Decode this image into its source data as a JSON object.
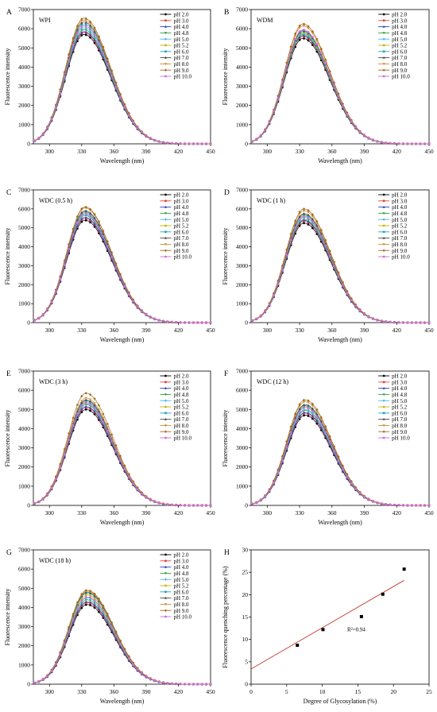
{
  "chart_data": [
    {
      "type": "line",
      "letter": "A",
      "title": "WPI",
      "xlabel": "Wavelength (nm)",
      "ylabel": "Fluorescence intensity",
      "xlim": [
        285,
        450
      ],
      "ylim": [
        0,
        7000
      ],
      "xticks": [
        "300",
        "330",
        "360",
        "390",
        "420",
        "450"
      ],
      "yticks": [
        "0",
        "1000",
        "2000",
        "3000",
        "4000",
        "5000",
        "6000",
        "7000"
      ],
      "legend": "top-right",
      "peak_x": 332,
      "series": [
        {
          "name": "pH 2.0",
          "peak": 5700,
          "color": "#000000"
        },
        {
          "name": "pH 3.0",
          "peak": 5800,
          "color": "#e8403a"
        },
        {
          "name": "pH 4.0",
          "peak": 5850,
          "color": "#2c3ec9"
        },
        {
          "name": "pH 4.8",
          "peak": 5950,
          "color": "#2f9e3b"
        },
        {
          "name": "pH 5.0",
          "peak": 6050,
          "color": "#49b4e6"
        },
        {
          "name": "pH 5.2",
          "peak": 6150,
          "color": "#c8b400"
        },
        {
          "name": "pH 6.0",
          "peak": 6250,
          "color": "#20a4b8"
        },
        {
          "name": "pH 7.0",
          "peak": 6350,
          "color": "#4a4a4a"
        },
        {
          "name": "pH 8.0",
          "peak": 6450,
          "color": "#d08a2c"
        },
        {
          "name": "pH 9.0",
          "peak": 6550,
          "color": "#a06a1a"
        },
        {
          "name": "pH 10.0",
          "peak": 6150,
          "color": "#d36ad6"
        }
      ]
    },
    {
      "type": "line",
      "letter": "B",
      "title": "WDM",
      "xlabel": "Wavelength (nm)",
      "ylabel": "Fluorescence intensity",
      "xlim": [
        285,
        450
      ],
      "ylim": [
        0,
        7000
      ],
      "xticks": [
        "300",
        "330",
        "360",
        "390",
        "420",
        "450"
      ],
      "yticks": [
        "0",
        "1000",
        "2000",
        "3000",
        "4000",
        "5000",
        "6000",
        "7000"
      ],
      "legend": "top-right",
      "peak_x": 333,
      "series": [
        {
          "name": "pH 2.0",
          "peak": 5500,
          "color": "#000000"
        },
        {
          "name": "pH 3.0",
          "peak": 5600,
          "color": "#e8403a"
        },
        {
          "name": "pH 4.0",
          "peak": 5650,
          "color": "#2c3ec9"
        },
        {
          "name": "pH 4.8",
          "peak": 5700,
          "color": "#2f9e3b"
        },
        {
          "name": "pH 5.0",
          "peak": 5750,
          "color": "#49b4e6"
        },
        {
          "name": "pH 5.2",
          "peak": 5800,
          "color": "#c8b400"
        },
        {
          "name": "pH 6.0",
          "peak": 5850,
          "color": "#20a4b8"
        },
        {
          "name": "pH 7.0",
          "peak": 5900,
          "color": "#4a4a4a"
        },
        {
          "name": "pH 8.0",
          "peak": 6150,
          "color": "#d08a2c"
        },
        {
          "name": "pH 9.0",
          "peak": 6250,
          "color": "#a06a1a"
        },
        {
          "name": "pH 10.0",
          "peak": 5950,
          "color": "#d36ad6"
        }
      ]
    },
    {
      "type": "line",
      "letter": "C",
      "title": "WDC (0.5 h)",
      "xlabel": "Wavelength (nm)",
      "ylabel": "Fluorescence intensity",
      "xlim": [
        285,
        450
      ],
      "ylim": [
        0,
        7000
      ],
      "xticks": [
        "300",
        "330",
        "360",
        "390",
        "420",
        "450"
      ],
      "yticks": [
        "0",
        "1000",
        "2000",
        "3000",
        "4000",
        "5000",
        "6000",
        "7000"
      ],
      "legend": "top-right",
      "peak_x": 333,
      "series": [
        {
          "name": "pH 2.0",
          "peak": 5400,
          "color": "#000000"
        },
        {
          "name": "pH 3.0",
          "peak": 5500,
          "color": "#e8403a"
        },
        {
          "name": "pH 4.0",
          "peak": 5550,
          "color": "#2c3ec9"
        },
        {
          "name": "pH 4.8",
          "peak": 5650,
          "color": "#2f9e3b"
        },
        {
          "name": "pH 5.0",
          "peak": 5700,
          "color": "#49b4e6"
        },
        {
          "name": "pH 5.2",
          "peak": 5800,
          "color": "#c8b400"
        },
        {
          "name": "pH 6.0",
          "peak": 5850,
          "color": "#20a4b8"
        },
        {
          "name": "pH 7.0",
          "peak": 5900,
          "color": "#4a4a4a"
        },
        {
          "name": "pH 8.0",
          "peak": 6050,
          "color": "#d08a2c"
        },
        {
          "name": "pH 9.0",
          "peak": 6100,
          "color": "#a06a1a"
        },
        {
          "name": "pH 10.0",
          "peak": 5750,
          "color": "#d36ad6"
        }
      ]
    },
    {
      "type": "line",
      "letter": "D",
      "title": "WDC (1 h)",
      "xlabel": "Wavelength (nm)",
      "ylabel": "Fluorescence intensity",
      "xlim": [
        285,
        450
      ],
      "ylim": [
        0,
        7000
      ],
      "xticks": [
        "300",
        "330",
        "360",
        "390",
        "420",
        "450"
      ],
      "yticks": [
        "0",
        "1000",
        "2000",
        "3000",
        "4000",
        "5000",
        "6000",
        "7000"
      ],
      "legend": "top-right",
      "peak_x": 334,
      "series": [
        {
          "name": "pH 2.0",
          "peak": 5250,
          "color": "#000000"
        },
        {
          "name": "pH 3.0",
          "peak": 5350,
          "color": "#e8403a"
        },
        {
          "name": "pH 4.0",
          "peak": 5400,
          "color": "#2c3ec9"
        },
        {
          "name": "pH 4.8",
          "peak": 5450,
          "color": "#2f9e3b"
        },
        {
          "name": "pH 5.0",
          "peak": 5550,
          "color": "#49b4e6"
        },
        {
          "name": "pH 5.2",
          "peak": 5650,
          "color": "#c8b400"
        },
        {
          "name": "pH 6.0",
          "peak": 5700,
          "color": "#20a4b8"
        },
        {
          "name": "pH 7.0",
          "peak": 5750,
          "color": "#4a4a4a"
        },
        {
          "name": "pH 8.0",
          "peak": 5900,
          "color": "#d08a2c"
        },
        {
          "name": "pH 9.0",
          "peak": 6000,
          "color": "#a06a1a"
        },
        {
          "name": "pH 10.0",
          "peak": 5600,
          "color": "#d36ad6"
        }
      ]
    },
    {
      "type": "line",
      "letter": "E",
      "title": "WDC (3 h)",
      "xlabel": "Wavelength (nm)",
      "ylabel": "Fluorescence intensity",
      "xlim": [
        285,
        450
      ],
      "ylim": [
        0,
        7000
      ],
      "xticks": [
        "300",
        "330",
        "360",
        "390",
        "420",
        "450"
      ],
      "yticks": [
        "0",
        "1000",
        "2000",
        "3000",
        "4000",
        "5000",
        "6000",
        "7000"
      ],
      "legend": "top-right",
      "peak_x": 334,
      "series": [
        {
          "name": "pH 2.0",
          "peak": 5000,
          "color": "#000000"
        },
        {
          "name": "pH 3.0",
          "peak": 5100,
          "color": "#e8403a"
        },
        {
          "name": "pH 4.0",
          "peak": 5150,
          "color": "#2c3ec9"
        },
        {
          "name": "pH 4.8",
          "peak": 5250,
          "color": "#2f9e3b"
        },
        {
          "name": "pH 5.0",
          "peak": 5300,
          "color": "#49b4e6"
        },
        {
          "name": "pH 5.2",
          "peak": 5400,
          "color": "#c8b400"
        },
        {
          "name": "pH 6.0",
          "peak": 5450,
          "color": "#20a4b8"
        },
        {
          "name": "pH 7.0",
          "peak": 5500,
          "color": "#4a4a4a"
        },
        {
          "name": "pH 8.0",
          "peak": 5600,
          "color": "#d08a2c"
        },
        {
          "name": "pH 9.0",
          "peak": 5850,
          "color": "#a06a1a"
        },
        {
          "name": "pH 10.0",
          "peak": 5350,
          "color": "#d36ad6"
        }
      ]
    },
    {
      "type": "line",
      "letter": "F",
      "title": "WDC (12 h)",
      "xlabel": "Wavelength (nm)",
      "ylabel": "Fluorescence intensity",
      "xlim": [
        285,
        450
      ],
      "ylim": [
        0,
        7000
      ],
      "xticks": [
        "300",
        "330",
        "360",
        "390",
        "420",
        "450"
      ],
      "yticks": [
        "0",
        "1000",
        "2000",
        "3000",
        "4000",
        "5000",
        "6000",
        "7000"
      ],
      "legend": "top-right",
      "peak_x": 335,
      "series": [
        {
          "name": "pH 2.0",
          "peak": 4700,
          "color": "#000000"
        },
        {
          "name": "pH 3.0",
          "peak": 4800,
          "color": "#e8403a"
        },
        {
          "name": "pH 4.0",
          "peak": 4850,
          "color": "#2c3ec9"
        },
        {
          "name": "pH 4.8",
          "peak": 4950,
          "color": "#2f9e3b"
        },
        {
          "name": "pH 5.0",
          "peak": 5000,
          "color": "#49b4e6"
        },
        {
          "name": "pH 5.2",
          "peak": 5150,
          "color": "#c8b400"
        },
        {
          "name": "pH 6.0",
          "peak": 5200,
          "color": "#20a4b8"
        },
        {
          "name": "pH 7.0",
          "peak": 5250,
          "color": "#4a4a4a"
        },
        {
          "name": "pH 8.0",
          "peak": 5400,
          "color": "#d08a2c"
        },
        {
          "name": "pH 9.0",
          "peak": 5500,
          "color": "#a06a1a"
        },
        {
          "name": "pH 10.0",
          "peak": 5100,
          "color": "#d36ad6"
        }
      ]
    },
    {
      "type": "line",
      "letter": "G",
      "title": "WDC (18 h)",
      "xlabel": "Wavelength (nm)",
      "ylabel": "Fluorescence intensity",
      "xlim": [
        285,
        450
      ],
      "ylim": [
        0,
        7000
      ],
      "xticks": [
        "300",
        "330",
        "360",
        "390",
        "420",
        "450"
      ],
      "yticks": [
        "0",
        "1000",
        "2000",
        "3000",
        "4000",
        "5000",
        "6000",
        "7000"
      ],
      "legend": "top-right",
      "peak_x": 335,
      "series": [
        {
          "name": "pH 2.0",
          "peak": 4150,
          "color": "#000000"
        },
        {
          "name": "pH 3.0",
          "peak": 4250,
          "color": "#e8403a"
        },
        {
          "name": "pH 4.0",
          "peak": 4300,
          "color": "#2c3ec9"
        },
        {
          "name": "pH 4.8",
          "peak": 4400,
          "color": "#2f9e3b"
        },
        {
          "name": "pH 5.0",
          "peak": 4500,
          "color": "#49b4e6"
        },
        {
          "name": "pH 5.2",
          "peak": 4650,
          "color": "#c8b400"
        },
        {
          "name": "pH 6.0",
          "peak": 4750,
          "color": "#20a4b8"
        },
        {
          "name": "pH 7.0",
          "peak": 4800,
          "color": "#4a4a4a"
        },
        {
          "name": "pH 8.0",
          "peak": 4850,
          "color": "#d08a2c"
        },
        {
          "name": "pH 9.0",
          "peak": 4900,
          "color": "#a06a1a"
        },
        {
          "name": "pH 10.0",
          "peak": 4550,
          "color": "#d36ad6"
        }
      ]
    },
    {
      "type": "scatter",
      "letter": "H",
      "title": "",
      "xlabel": "Degree of Glycosylation (%)",
      "ylabel": "Fluorescence quenching percentage (%)",
      "xlim": [
        0,
        25
      ],
      "ylim": [
        0,
        30
      ],
      "xticks": [
        "0",
        "5",
        "10",
        "15",
        "20",
        "25"
      ],
      "yticks": [
        "0",
        "5",
        "10",
        "15",
        "20",
        "25",
        "30"
      ],
      "points": [
        {
          "x": 6.5,
          "y": 8.7
        },
        {
          "x": 10.1,
          "y": 12.2
        },
        {
          "x": 15.5,
          "y": 15.1
        },
        {
          "x": 18.5,
          "y": 20.1
        },
        {
          "x": 21.5,
          "y": 25.7
        }
      ],
      "fit": {
        "x": [
          0,
          21.5
        ],
        "y": [
          3.4,
          23.2
        ],
        "color": "#c0392b"
      },
      "annotation": "R²=0.94"
    }
  ]
}
